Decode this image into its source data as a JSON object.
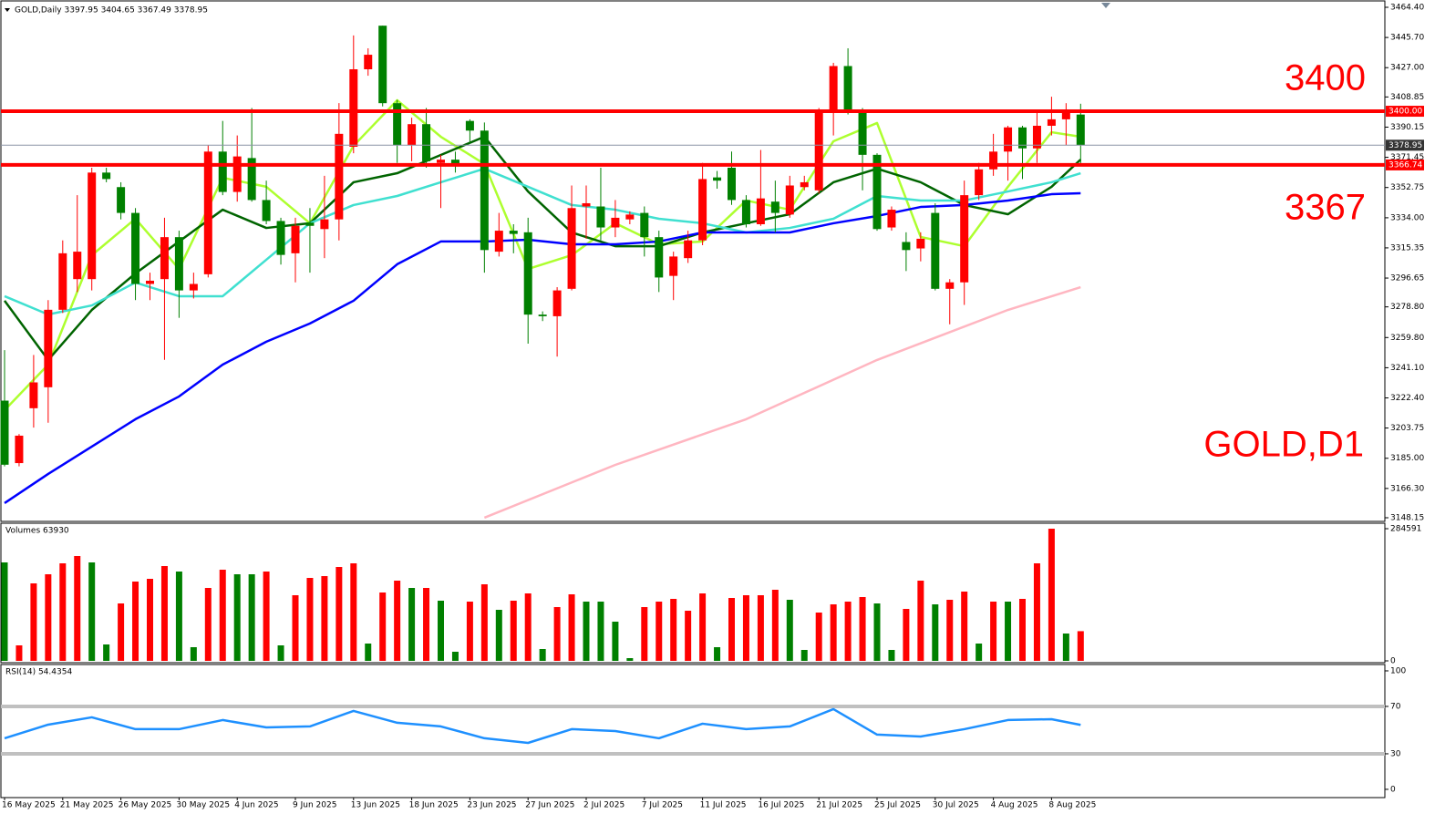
{
  "header": "GOLD,Daily 3397.95 3404.65 3367.49 3378.95",
  "chart_data": [
    {
      "type": "candlestick",
      "categories": [
        "16 May 2025",
        null,
        null,
        null,
        "21 May 2025",
        null,
        null,
        null,
        "26 May 2025",
        null,
        null,
        null,
        "30 May 2025",
        null,
        null,
        null,
        "4 Jun 2025",
        null,
        null,
        null,
        "9 Jun 2025",
        null,
        null,
        null,
        "13 Jun 2025",
        null,
        null,
        null,
        "18 Jun 2025",
        null,
        null,
        null,
        "23 Jun 2025",
        null,
        null,
        null,
        "27 Jun 2025",
        null,
        null,
        null,
        "2 Jul 2025",
        null,
        null,
        null,
        "7 Jul 2025",
        null,
        null,
        null,
        "11 Jul 2025",
        null,
        null,
        null,
        "16 Jul 2025",
        null,
        null,
        null,
        "21 Jul 2025",
        null,
        null,
        null,
        "25 Jul 2025",
        null,
        null,
        null,
        "30 Jul 2025",
        null,
        null,
        null,
        "4 Aug 2025",
        null,
        null,
        null,
        "8 Aug 2025",
        null,
        null
      ],
      "open": [
        3220.7,
        3182,
        3216,
        3229,
        3277,
        3296,
        3296,
        3362,
        3353,
        3337,
        3293,
        3296,
        3322,
        3289,
        3299,
        3375,
        3350,
        3371,
        3345,
        3332,
        3312,
        3331,
        3327,
        3333,
        3378,
        3426,
        3453,
        3405,
        3379,
        3392,
        3368,
        3370,
        3394,
        3388,
        3313,
        3326,
        3325,
        3274,
        3273,
        3290,
        3341,
        3341,
        3328,
        3333,
        3337,
        3322,
        3298,
        3309,
        3320,
        3359,
        3365,
        3345,
        3330,
        3344,
        3336,
        3353,
        3351,
        3399,
        3428,
        3399,
        3373,
        3328,
        3319,
        3315,
        3337,
        3290,
        3294,
        3348,
        3364,
        3375,
        3390,
        3377,
        3391,
        3395,
        3397.95
      ],
      "high": [
        3252,
        3200,
        3249,
        3283,
        3320,
        3348,
        3365,
        3365,
        3356,
        3340,
        3300,
        3334,
        3326,
        3300,
        3379,
        3394,
        3385,
        3402,
        3357,
        3334,
        3334,
        3340,
        3360,
        3405,
        3447,
        3439,
        3453,
        3407,
        3396,
        3402,
        3373,
        3375,
        3395,
        3393,
        3337,
        3330,
        3334,
        3276,
        3291,
        3354,
        3354,
        3365,
        3345,
        3338,
        3341,
        3326,
        3313,
        3326,
        3368,
        3363,
        3375,
        3348,
        3376,
        3357,
        3360,
        3360,
        3402,
        3430,
        3439,
        3402,
        3374,
        3341,
        3325,
        3325,
        3343,
        3296,
        3357,
        3368,
        3386,
        3391,
        3391,
        3399,
        3409,
        3405,
        3404.65
      ],
      "low": [
        3180,
        3180,
        3204,
        3207,
        3275,
        3288,
        3289,
        3356,
        3333,
        3283,
        3283,
        3246,
        3272,
        3284,
        3297,
        3348,
        3344,
        3344,
        3330,
        3305,
        3294,
        3300,
        3309,
        3320,
        3374,
        3422,
        3403,
        3368,
        3369,
        3365,
        3340,
        3362,
        3380,
        3300,
        3310,
        3312,
        3256,
        3270,
        3248,
        3289,
        3321,
        3320,
        3322,
        3330,
        3310,
        3288,
        3283,
        3306,
        3317,
        3352,
        3342,
        3328,
        3329,
        3325,
        3334,
        3351,
        3349,
        3385,
        3398,
        3351,
        3326,
        3326,
        3301,
        3307,
        3289,
        3268,
        3280,
        3345,
        3360,
        3357,
        3358,
        3368,
        3385,
        3379,
        3367.49
      ],
      "close": [
        3181,
        3199,
        3232,
        3277,
        3312,
        3313,
        3362,
        3358,
        3337,
        3293,
        3295,
        3322,
        3289,
        3293,
        3375,
        3350,
        3372,
        3345,
        3332,
        3311,
        3329,
        3329,
        3333,
        3386,
        3426,
        3435,
        3405,
        3379,
        3392,
        3369,
        3370,
        3367,
        3388,
        3314,
        3326,
        3324,
        3274,
        3273,
        3289,
        3340,
        3343,
        3328,
        3334,
        3336,
        3322,
        3297,
        3310,
        3320,
        3358,
        3357,
        3345,
        3330,
        3346,
        3337,
        3354,
        3356,
        3399,
        3428,
        3399,
        3373,
        3327,
        3339,
        3314,
        3321,
        3290,
        3294,
        3348,
        3364,
        3375,
        3390,
        3377,
        3391,
        3395,
        3399,
        3378.95
      ],
      "up_color": "#ff0000",
      "down_color": "#008000",
      "lines": [
        {
          "color": "#adff2f",
          "x": [
            0,
            3,
            6,
            9,
            12,
            15,
            18,
            21,
            24,
            27,
            30,
            33,
            36,
            39,
            42,
            45,
            48,
            51,
            54,
            57,
            60,
            63,
            66,
            69,
            72,
            74
          ],
          "values": [
            3214.8,
            3243.0,
            3310.8,
            3333.4,
            3302.3,
            3358.8,
            3353.2,
            3330.6,
            3378.6,
            3406.8,
            3384.2,
            3367.3,
            3302.3,
            3310.8,
            3330.6,
            3317.6,
            3319.3,
            3344.7,
            3339.0,
            3381.4,
            3392.7,
            3322.1,
            3316.4,
            3353.2,
            3387.0,
            3384.2
          ]
        },
        {
          "color": "#006400",
          "x": [
            0,
            3,
            6,
            9,
            12,
            15,
            18,
            21,
            24,
            27,
            30,
            33,
            36,
            39,
            42,
            45,
            48,
            51,
            54,
            57,
            60,
            63,
            66,
            69,
            72,
            74
          ],
          "values": [
            3282.6,
            3245.9,
            3276.9,
            3299.5,
            3319.3,
            3339.0,
            3327.7,
            3330.6,
            3356.0,
            3361.6,
            3372.9,
            3384.2,
            3350.3,
            3324.9,
            3316.4,
            3316.4,
            3324.9,
            3330.6,
            3336.2,
            3356.0,
            3364.4,
            3356.0,
            3341.9,
            3336.2,
            3353.2,
            3370.1
          ]
        },
        {
          "color": "#40e0d0",
          "x": [
            0,
            3,
            6,
            9,
            12,
            15,
            18,
            21,
            24,
            27,
            30,
            33,
            36,
            39,
            42,
            45,
            48,
            51,
            54,
            57,
            60,
            63,
            66,
            69,
            72,
            74
          ],
          "values": [
            3285.4,
            3274.1,
            3279.7,
            3293.9,
            3285.4,
            3285.4,
            3308.0,
            3330.6,
            3341.9,
            3347.5,
            3356.0,
            3364.4,
            3353.2,
            3341.9,
            3339.0,
            3333.4,
            3330.6,
            3324.9,
            3327.7,
            3333.4,
            3347.5,
            3344.7,
            3344.7,
            3350.3,
            3356.0,
            3361.6
          ]
        },
        {
          "color": "#0000ff",
          "x": [
            0,
            3,
            6,
            9,
            12,
            15,
            18,
            21,
            24,
            27,
            30,
            33,
            36,
            39,
            42,
            45,
            48,
            51,
            54,
            57,
            60,
            63,
            66,
            69,
            72,
            74
          ],
          "values": [
            3157.2,
            3175.3,
            3192.2,
            3209.2,
            3223.3,
            3243.0,
            3257.2,
            3268.5,
            3282.6,
            3305.2,
            3319.3,
            3319.3,
            3320.4,
            3317.6,
            3317.6,
            3319.3,
            3324.9,
            3324.9,
            3324.9,
            3330.6,
            3335.1,
            3340.7,
            3341.9,
            3344.7,
            3348.6,
            3349.2
          ]
        },
        {
          "color": "#ffb6c1",
          "x": [
            33,
            42,
            51,
            60,
            69,
            74
          ],
          "values": [
            3148.2,
            3180.9,
            3209.2,
            3245.9,
            3276.9,
            3291.0
          ]
        }
      ],
      "levels": [
        {
          "value": 3400,
          "label": "3400.00",
          "color": "#ff0000"
        },
        {
          "value": 3366.74,
          "label": "3366.74",
          "color": "#ff0000"
        }
      ],
      "current": {
        "value": 3378.95,
        "label": "3378.95",
        "color": "#8a94a6"
      },
      "annotations": [
        "3400",
        "3367",
        "GOLD,D1"
      ],
      "ylim": [
        3145.89,
        3467.79
      ],
      "yticks": [
        {
          "value": 3464.4,
          "label": "3464.40"
        },
        {
          "value": 3445.7,
          "label": "3445.70"
        },
        {
          "value": 3427,
          "label": "3427.00"
        },
        {
          "value": 3408.85,
          "label": "3408.85"
        },
        {
          "value": 3390.15,
          "label": "3390.15"
        },
        {
          "value": 3371.45,
          "label": "3371.45"
        },
        {
          "value": 3352.75,
          "label": "3352.75"
        },
        {
          "value": 3334,
          "label": "3334.00"
        },
        {
          "value": 3315.35,
          "label": "3315.35"
        },
        {
          "value": 3296.65,
          "label": "3296.65"
        },
        {
          "value": 3278.8,
          "label": "3278.80"
        },
        {
          "value": 3259.8,
          "label": "3259.80"
        },
        {
          "value": 3241.1,
          "label": "3241.10"
        },
        {
          "value": 3222.4,
          "label": "3222.40"
        },
        {
          "value": 3203.75,
          "label": "3203.75"
        },
        {
          "value": 3185,
          "label": "3185.00"
        },
        {
          "value": 3166.3,
          "label": "3166.30"
        },
        {
          "value": 3148.15,
          "label": "3148.15"
        }
      ]
    },
    {
      "type": "bar",
      "title": "Volumes 63930",
      "values": [
        211972,
        33366,
        166830,
        186457,
        210009,
        225711,
        211972,
        35329,
        123650,
        170755,
        176643,
        204121,
        192345,
        29441,
        157016,
        196270,
        186457,
        186457,
        192345,
        33366,
        141314,
        178606,
        182531,
        202158,
        210009,
        37291,
        147203,
        172718,
        157016,
        157016,
        129538,
        19627,
        127576,
        164867,
        109911,
        129538,
        145240,
        25515,
        115799,
        143277,
        127576,
        127576,
        84396,
        5888,
        115799,
        127576,
        133464,
        107949,
        145240,
        29441,
        135426,
        141314,
        141314,
        153091,
        131501,
        23552,
        104023,
        121687,
        127576,
        137389,
        123650,
        23552,
        111874,
        172718,
        121687,
        131501,
        149165,
        37291,
        127576,
        127576,
        133464,
        210009,
        284591,
        58881,
        63930
      ],
      "colors": [
        "green",
        "red",
        "red",
        "red",
        "red",
        "red",
        "green",
        "green",
        "red",
        "red",
        "red",
        "red",
        "green",
        "green",
        "red",
        "red",
        "green",
        "green",
        "red",
        "green",
        "red",
        "red",
        "red",
        "red",
        "red",
        "green",
        "red",
        "red",
        "green",
        "red",
        "green",
        "green",
        "red",
        "red",
        "green",
        "red",
        "red",
        "green",
        "red",
        "red",
        "green",
        "green",
        "green",
        "green",
        "red",
        "red",
        "red",
        "red",
        "red",
        "green",
        "red",
        "red",
        "red",
        "red",
        "green",
        "green",
        "red",
        "red",
        "red",
        "red",
        "green",
        "green",
        "red",
        "red",
        "green",
        "red",
        "red",
        "green",
        "red",
        "green",
        "red",
        "red",
        "red",
        "green",
        "red"
      ],
      "ylim": [
        -3925,
        292442
      ],
      "yticks": [
        284591,
        0
      ]
    },
    {
      "type": "line",
      "title": "RSI(14) 54.4354",
      "color": "#1e90ff",
      "x": [
        0,
        3,
        6,
        9,
        12,
        15,
        18,
        21,
        24,
        27,
        30,
        33,
        36,
        39,
        42,
        45,
        48,
        51,
        54,
        57,
        60,
        63,
        66,
        69,
        72,
        74
      ],
      "values": [
        43.1,
        54.6,
        60.8,
        50.8,
        50.8,
        58.5,
        52.3,
        53.1,
        66.2,
        56.2,
        53.1,
        43.1,
        39.2,
        50.8,
        49.2,
        43.1,
        55.4,
        50.8,
        53.1,
        67.7,
        46.2,
        44.6,
        50.8,
        58.5,
        59.2,
        54.4
      ],
      "levels": [
        70,
        30
      ],
      "ylim": [
        -6.2,
        104.6
      ],
      "yticks": [
        100,
        70,
        30,
        0
      ]
    }
  ]
}
